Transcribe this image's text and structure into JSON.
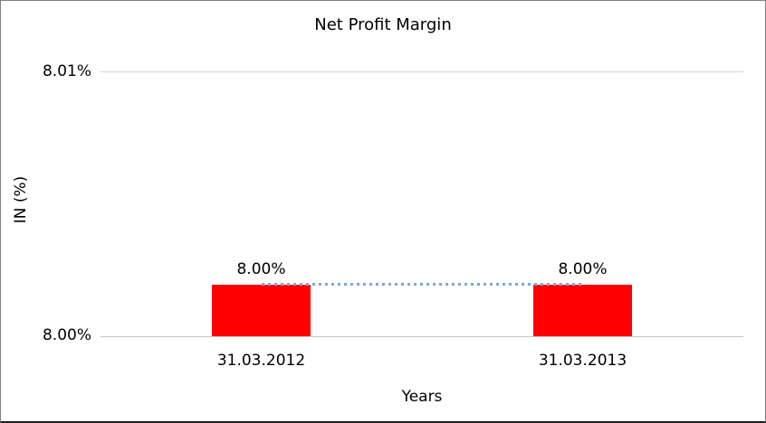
{
  "window": {
    "background": "#FFFFFF",
    "border_color": "#808080"
  },
  "chart_data": {
    "type": "bar",
    "title": "Net Profit Margin",
    "xlabel": "Years",
    "ylabel": "IN (%)",
    "categories": [
      "31.03.2012",
      "31.03.2013"
    ],
    "values": [
      8.0,
      8.0
    ],
    "data_labels": [
      "8.00%",
      "8.00%"
    ],
    "y_tick_labels": [
      "8.01%",
      "8.00%"
    ],
    "ylim": [
      8.0,
      8.01
    ],
    "bar_color": "#FF0000",
    "trendline": {
      "style": "dotted",
      "color": "#7DA7D9"
    },
    "gridline_color": "#D4D4D4",
    "grid": "horizontal",
    "legend_position": "none",
    "text_color": "#000000"
  }
}
